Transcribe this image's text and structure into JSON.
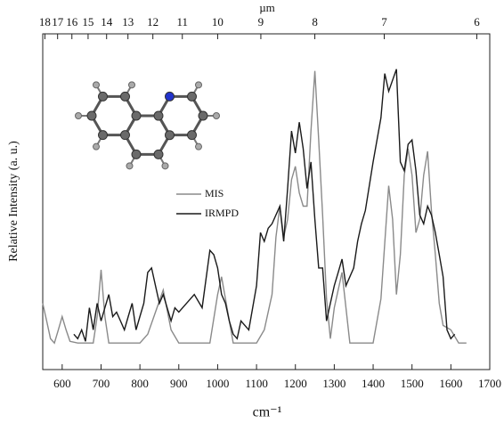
{
  "chart_data": {
    "type": "line",
    "x_label": "cm⁻¹",
    "x2_label": "µm",
    "y_label": "Relative Intensity (a. u.)",
    "xlim": [
      550,
      1700
    ],
    "xticks": [
      600,
      700,
      800,
      900,
      1000,
      1100,
      1200,
      1300,
      1400,
      1500,
      1600,
      1700
    ],
    "x2ticks": [
      18,
      17,
      16,
      15,
      14,
      13,
      12,
      11,
      10,
      9,
      8,
      7,
      6
    ],
    "ylim": [
      0,
      380
    ],
    "legend": "upper-left",
    "series": [
      {
        "name": "MIS",
        "color": "#8a8a8a",
        "x": [
          550,
          560,
          570,
          580,
          590,
          600,
          610,
          620,
          640,
          680,
          690,
          700,
          710,
          720,
          760,
          800,
          820,
          840,
          860,
          880,
          900,
          980,
          1000,
          1010,
          1020,
          1040,
          1100,
          1120,
          1140,
          1150,
          1160,
          1170,
          1180,
          1190,
          1200,
          1210,
          1220,
          1230,
          1240,
          1250,
          1260,
          1270,
          1280,
          1290,
          1300,
          1320,
          1330,
          1340,
          1400,
          1420,
          1440,
          1450,
          1460,
          1470,
          1480,
          1490,
          1500,
          1510,
          1520,
          1530,
          1540,
          1550,
          1560,
          1570,
          1580,
          1600,
          1620,
          1640
        ],
        "values": [
          75,
          55,
          35,
          30,
          45,
          60,
          45,
          32,
          30,
          30,
          60,
          113,
          60,
          30,
          30,
          30,
          40,
          65,
          90,
          45,
          30,
          30,
          85,
          105,
          80,
          30,
          30,
          45,
          85,
          150,
          185,
          150,
          170,
          215,
          230,
          200,
          185,
          185,
          270,
          338,
          260,
          175,
          80,
          35,
          70,
          110,
          70,
          30,
          30,
          80,
          208,
          170,
          85,
          130,
          220,
          250,
          220,
          155,
          170,
          220,
          247,
          180,
          130,
          75,
          50,
          45,
          30,
          30
        ]
      },
      {
        "name": "IRMPD",
        "color": "#1a1a1a",
        "x": [
          630,
          640,
          650,
          660,
          670,
          680,
          690,
          700,
          710,
          720,
          730,
          740,
          750,
          760,
          770,
          780,
          790,
          800,
          810,
          820,
          830,
          840,
          850,
          860,
          870,
          880,
          890,
          900,
          920,
          940,
          960,
          980,
          990,
          1000,
          1010,
          1020,
          1030,
          1040,
          1050,
          1060,
          1080,
          1100,
          1110,
          1120,
          1130,
          1140,
          1160,
          1170,
          1180,
          1190,
          1200,
          1210,
          1220,
          1230,
          1240,
          1250,
          1260,
          1270,
          1280,
          1290,
          1300,
          1310,
          1320,
          1330,
          1350,
          1360,
          1370,
          1380,
          1400,
          1420,
          1430,
          1440,
          1460,
          1470,
          1480,
          1490,
          1500,
          1510,
          1520,
          1530,
          1540,
          1550,
          1560,
          1570,
          1580,
          1590,
          1600,
          1610
        ],
        "values": [
          40,
          35,
          45,
          32,
          70,
          45,
          75,
          55,
          70,
          85,
          60,
          65,
          55,
          45,
          60,
          75,
          45,
          60,
          75,
          110,
          115,
          95,
          75,
          85,
          70,
          55,
          70,
          65,
          75,
          85,
          70,
          135,
          130,
          115,
          85,
          75,
          55,
          40,
          35,
          55,
          45,
          95,
          155,
          145,
          160,
          165,
          185,
          145,
          205,
          270,
          245,
          280,
          250,
          205,
          235,
          170,
          115,
          115,
          55,
          75,
          95,
          110,
          125,
          95,
          115,
          145,
          165,
          180,
          235,
          285,
          335,
          315,
          340,
          235,
          225,
          255,
          260,
          225,
          175,
          165,
          185,
          175,
          155,
          130,
          105,
          45,
          35,
          40
        ]
      }
    ]
  }
}
